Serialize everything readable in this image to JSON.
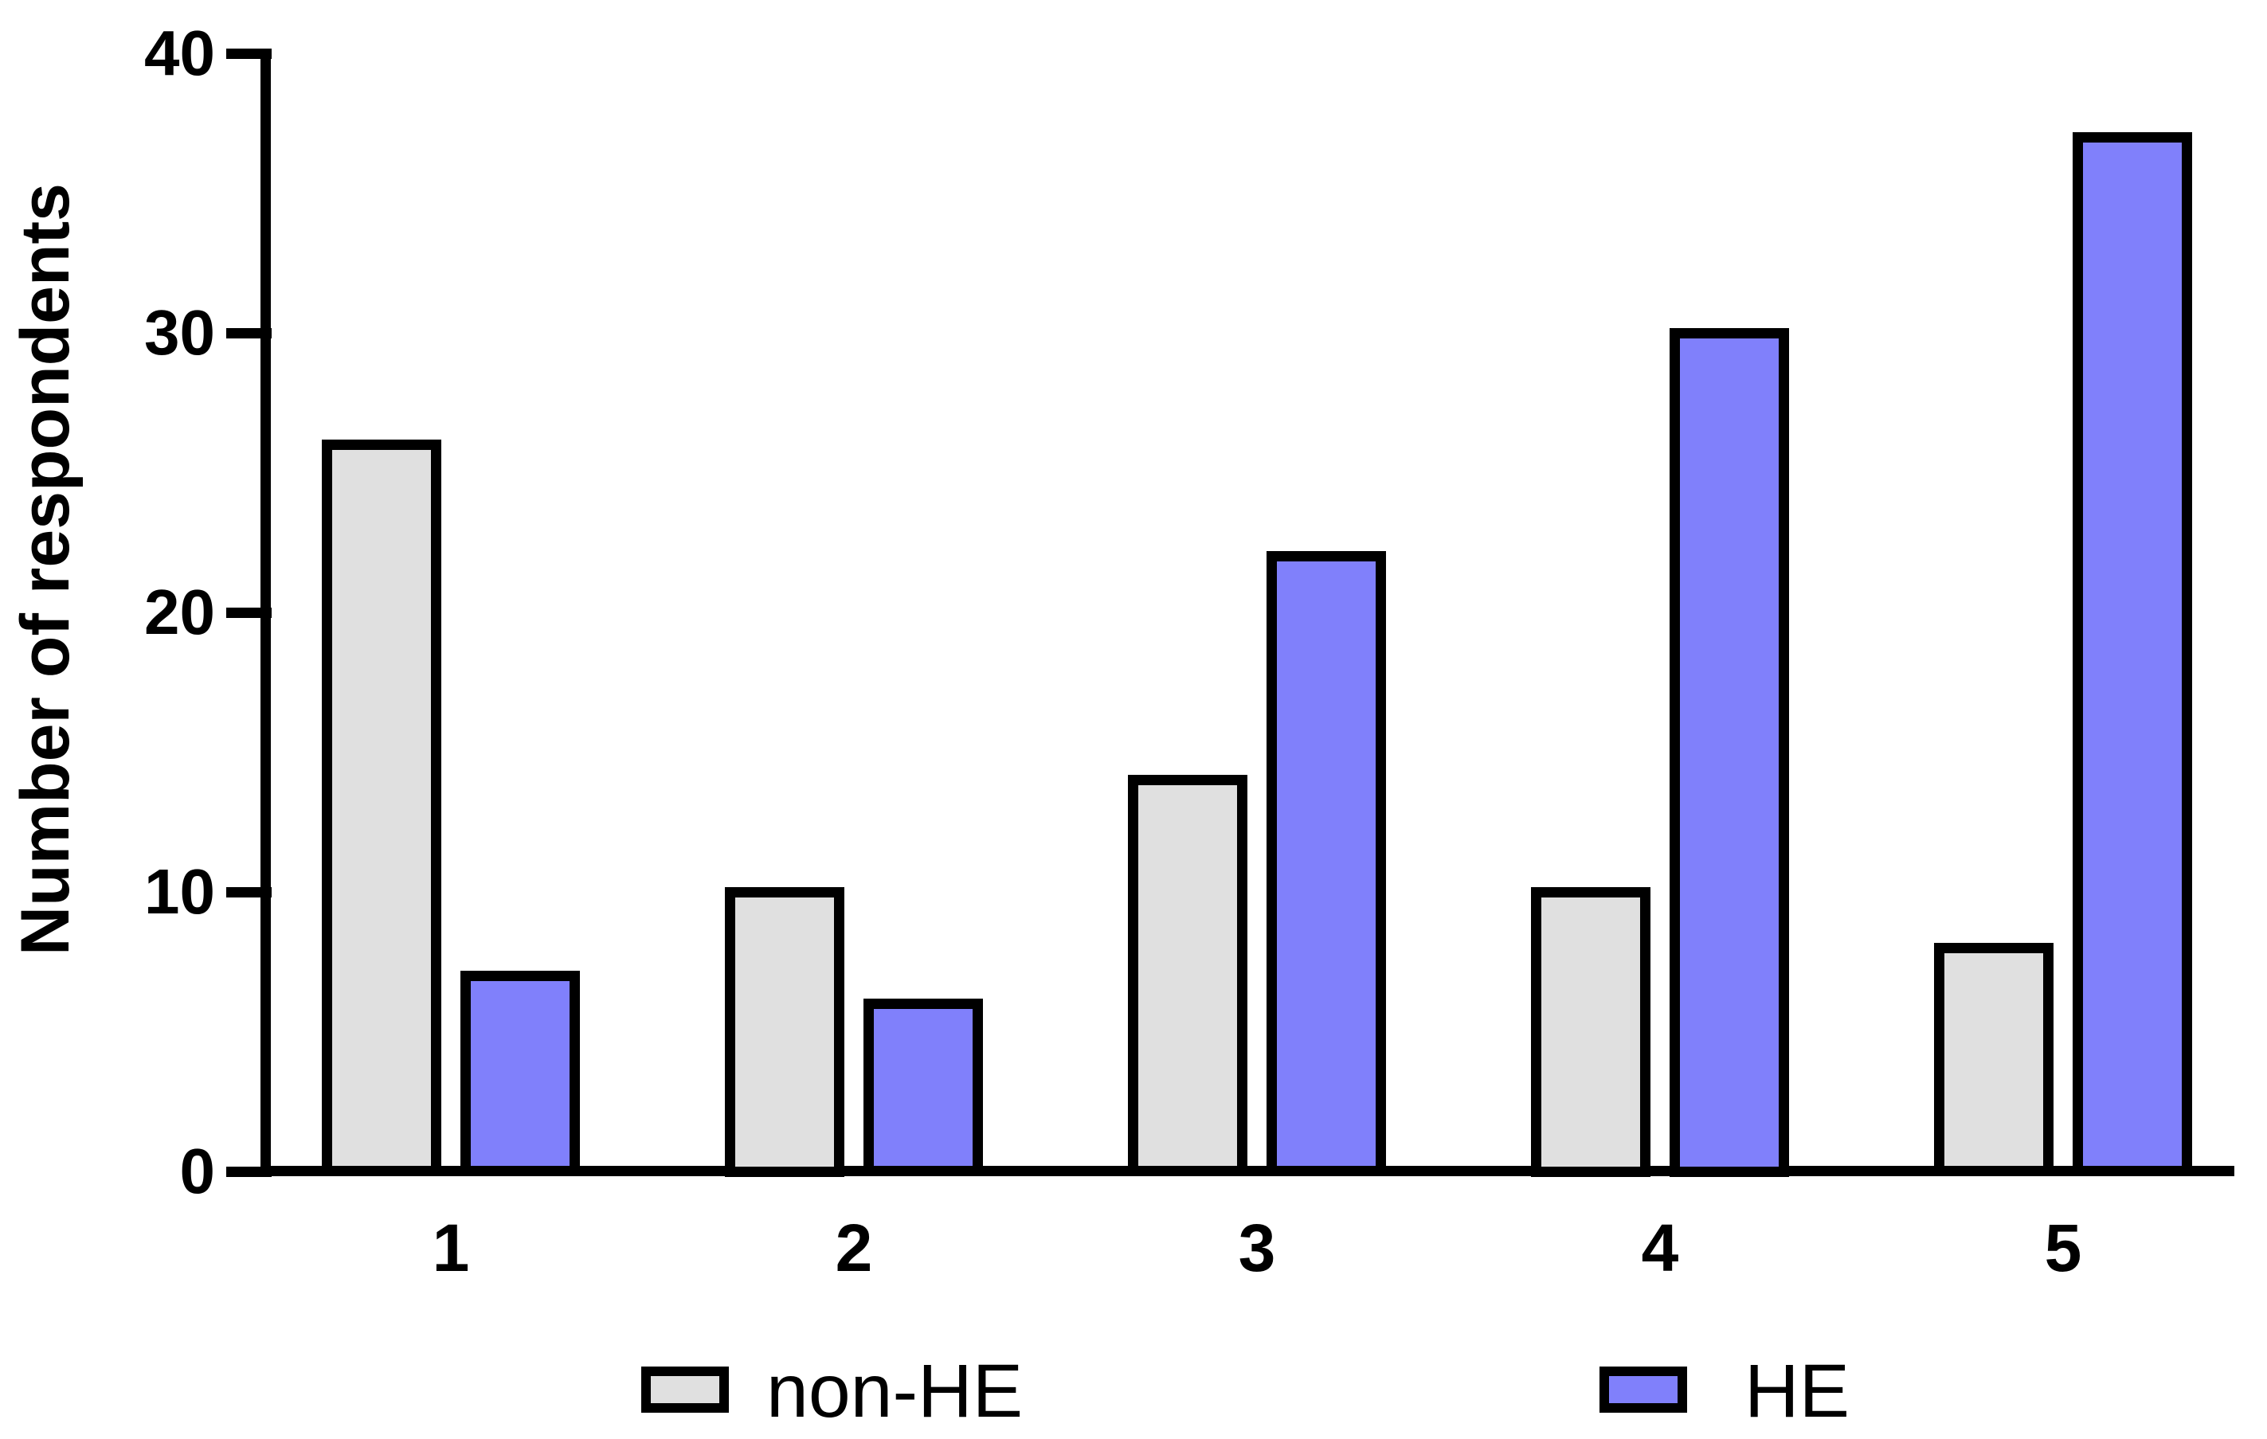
{
  "chart_data": {
    "type": "bar",
    "title": "",
    "categories": [
      "1",
      "2",
      "3",
      "4",
      "5"
    ],
    "series": [
      {
        "name": "non-HE",
        "color": "#e0e0e0",
        "values": [
          26,
          10,
          14,
          10,
          8
        ]
      },
      {
        "name": "HE",
        "color": "#8080fb",
        "values": [
          7,
          6,
          22,
          30,
          37
        ]
      }
    ],
    "xlabel": "",
    "ylabel": "Number of respondents",
    "ylim": [
      0,
      40
    ],
    "yticks": [
      0,
      10,
      20,
      30,
      40
    ],
    "grid": false,
    "legend_position": "bottom",
    "bar_border_color": "#000000",
    "background_color": "#ffffff"
  }
}
